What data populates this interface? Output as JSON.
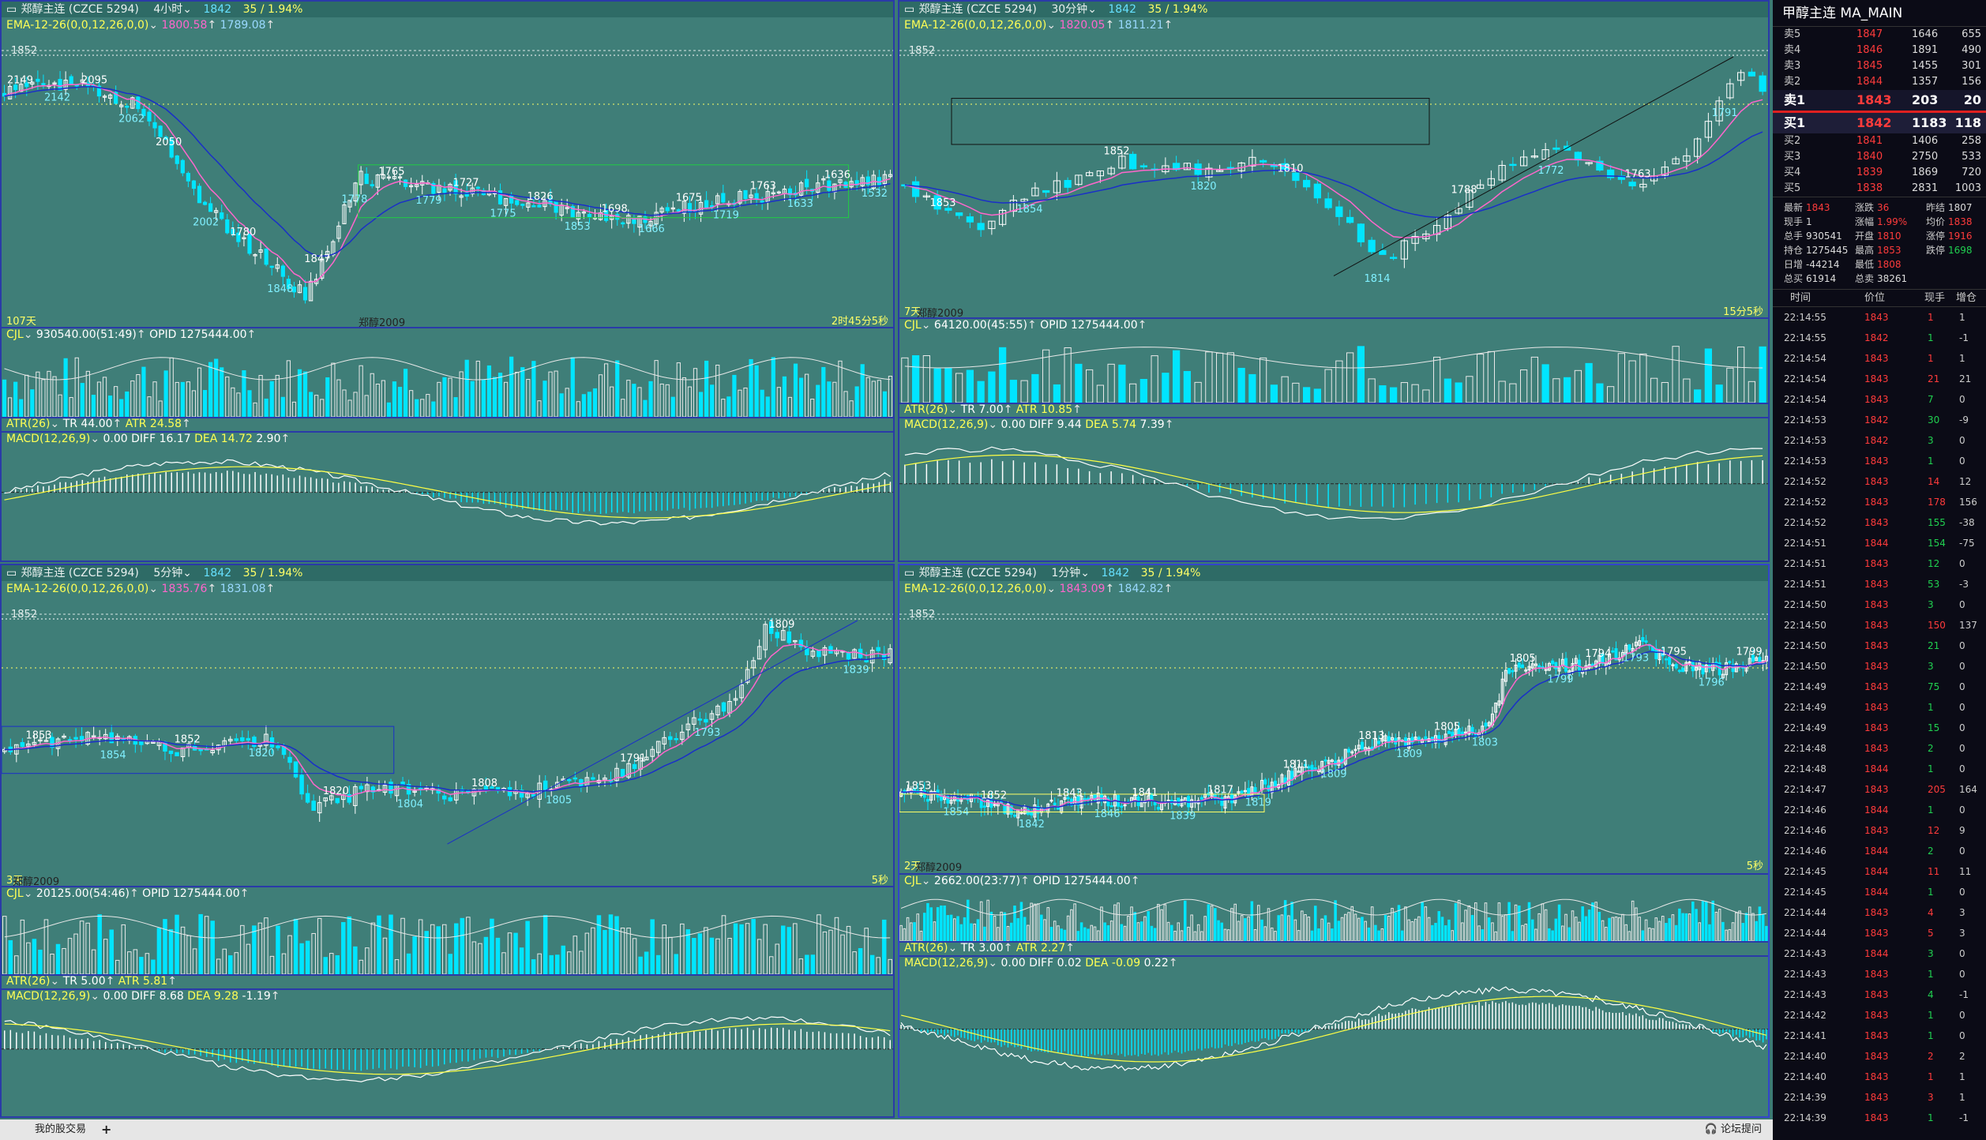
{
  "panels": [
    {
      "id": "p1",
      "header": {
        "name": "郑醇主连",
        "code": "(CZCE 5294)",
        "period": "4小时",
        "price": "1842",
        "change": "35 / 1.94%"
      },
      "ema": {
        "label": "EMA-12-26(0,0,12,26,0,0)",
        "v1": "1800.58",
        "v2": "1789.08"
      },
      "price_labels": [
        "2149",
        "2142",
        "2095",
        "2062",
        "2050",
        "2002",
        "1780",
        "1848",
        "1847",
        "1778",
        "1765",
        "1779",
        "1727",
        "1775",
        "1826",
        "1853",
        "1698",
        "1666",
        "1675",
        "1719",
        "1763",
        "1633",
        "1636",
        "1532"
      ],
      "axis_label": "1852",
      "left_corner": "107天",
      "center_tag": "郑醇2009",
      "right_corner": "2时45分5秒",
      "cjl": {
        "label": "CJL",
        "value": "930540.00(51:49)",
        "opid": "OPID 1275444.00"
      },
      "atr": {
        "label": "ATR(26)",
        "tr": "TR 44.00",
        "atr": "ATR 24.58"
      },
      "macd": {
        "label": "MACD(12,26,9)",
        "v0": "0.00",
        "diff": "DIFF 16.17",
        "dea": "DEA 14.72",
        "val": "2.90"
      }
    },
    {
      "id": "p2",
      "header": {
        "name": "郑醇主连",
        "code": "(CZCE 5294)",
        "period": "30分钟",
        "price": "1842",
        "change": "35 / 1.94%"
      },
      "ema": {
        "label": "EMA-12-26(0,0,12,26,0,0)",
        "v1": "1820.05",
        "v2": "1811.21"
      },
      "price_labels": [
        "1853",
        "1854",
        "1852",
        "1820",
        "1810",
        "1814",
        "1788",
        "1772",
        "1763",
        "1791"
      ],
      "axis_label": "1852",
      "left_corner": "7天",
      "center_tag": "郑醇2009",
      "right_corner": "15分5秒",
      "cjl": {
        "label": "CJL",
        "value": "64120.00(45:55)",
        "opid": "OPID 1275444.00"
      },
      "atr": {
        "label": "ATR(26)",
        "tr": "TR 7.00",
        "atr": "ATR 10.85"
      },
      "macd": {
        "label": "MACD(12,26,9)",
        "v0": "0.00",
        "diff": "DIFF 9.44",
        "dea": "DEA 5.74",
        "val": "7.39"
      }
    },
    {
      "id": "p3",
      "header": {
        "name": "郑醇主连",
        "code": "(CZCE 5294)",
        "period": "5分钟",
        "price": "1842",
        "change": "35 / 1.94%"
      },
      "ema": {
        "label": "EMA-12-26(0,0,12,26,0,0)",
        "v1": "1835.76",
        "v2": "1831.08"
      },
      "price_labels": [
        "1853",
        "1854",
        "1852",
        "1820",
        "1820",
        "1804",
        "1808",
        "1805",
        "1791",
        "1793",
        "1809",
        "1839"
      ],
      "axis_label": "1852",
      "left_corner": "3天",
      "center_tag": "郑醇2009",
      "right_corner": "5秒",
      "cjl": {
        "label": "CJL",
        "value": "20125.00(54:46)",
        "opid": "OPID 1275444.00"
      },
      "atr": {
        "label": "ATR(26)",
        "tr": "TR 5.00",
        "atr": "ATR 5.81"
      },
      "macd": {
        "label": "MACD(12,26,9)",
        "v0": "0.00",
        "diff": "DIFF 8.68",
        "dea": "DEA 9.28",
        "val": "-1.19"
      }
    },
    {
      "id": "p4",
      "header": {
        "name": "郑醇主连",
        "code": "(CZCE 5294)",
        "period": "1分钟",
        "price": "1842",
        "change": "35 / 1.94%"
      },
      "ema": {
        "label": "EMA-12-26(0,0,12,26,0,0)",
        "v1": "1843.09",
        "v2": "1842.82"
      },
      "price_labels": [
        "1853",
        "1854",
        "1852",
        "1842",
        "1843",
        "1846",
        "1841",
        "1839",
        "1817",
        "1819",
        "1811",
        "1809",
        "1813",
        "1809",
        "1805",
        "1803",
        "1805",
        "1799",
        "1794",
        "1793",
        "1795",
        "1796",
        "1799"
      ],
      "axis_label": "1852",
      "left_corner": "2天",
      "center_tag": "郑醇2009",
      "right_corner": "5秒",
      "cjl": {
        "label": "CJL",
        "value": "2662.00(23:77)",
        "opid": "OPID 1275444.00"
      },
      "atr": {
        "label": "ATR(26)",
        "tr": "TR 3.00",
        "atr": "ATR 2.27"
      },
      "macd": {
        "label": "MACD(12,26,9)",
        "v0": "0.00",
        "diff": "DIFF 0.02",
        "dea": "DEA -0.09",
        "val": "0.22"
      }
    }
  ],
  "quote": {
    "title": "甲醇主连  MA_MAIN",
    "asks": [
      {
        "label": "卖5",
        "price": "1847",
        "v1": "1646",
        "v2": "655"
      },
      {
        "label": "卖4",
        "price": "1846",
        "v1": "1891",
        "v2": "490"
      },
      {
        "label": "卖3",
        "price": "1845",
        "v1": "1455",
        "v2": "301"
      },
      {
        "label": "卖2",
        "price": "1844",
        "v1": "1357",
        "v2": "156"
      }
    ],
    "ask1": {
      "label": "卖1",
      "price": "1843",
      "v1": "203",
      "v2": "20"
    },
    "bid1": {
      "label": "买1",
      "price": "1842",
      "v1": "1183",
      "v2": "118"
    },
    "bids": [
      {
        "label": "买2",
        "price": "1841",
        "v1": "1406",
        "v2": "258"
      },
      {
        "label": "买3",
        "price": "1840",
        "v1": "2750",
        "v2": "533"
      },
      {
        "label": "买4",
        "price": "1839",
        "v1": "1869",
        "v2": "720"
      },
      {
        "label": "买5",
        "price": "1838",
        "v1": "2831",
        "v2": "1003"
      }
    ],
    "stats": [
      [
        {
          "k": "最新",
          "v": "1843",
          "c": "r"
        },
        {
          "k": "涨跌",
          "v": "36",
          "c": "r"
        },
        {
          "k": "昨结",
          "v": "1807",
          "c": "w"
        }
      ],
      [
        {
          "k": "现手",
          "v": "1",
          "c": "w"
        },
        {
          "k": "涨幅",
          "v": "1.99%",
          "c": "r"
        },
        {
          "k": "均价",
          "v": "1838",
          "c": "r"
        }
      ],
      [
        {
          "k": "总手",
          "v": "930541",
          "c": "w"
        },
        {
          "k": "开盘",
          "v": "1810",
          "c": "r"
        },
        {
          "k": "涨停",
          "v": "1916",
          "c": "r"
        }
      ],
      [
        {
          "k": "持仓",
          "v": "1275445",
          "c": "w"
        },
        {
          "k": "最高",
          "v": "1853",
          "c": "r"
        },
        {
          "k": "跌停",
          "v": "1698",
          "c": "g"
        }
      ],
      [
        {
          "k": "日增",
          "v": "-44214",
          "c": "w"
        },
        {
          "k": "最低",
          "v": "1808",
          "c": "r"
        },
        {
          "k": "",
          "v": "",
          "c": "w"
        }
      ],
      [
        {
          "k": "总买",
          "v": "61914",
          "c": "w"
        },
        {
          "k": "总卖",
          "v": "38261",
          "c": "w"
        },
        {
          "k": "",
          "v": "",
          "c": "w"
        }
      ]
    ],
    "tick_headers": [
      "时间",
      "价位",
      "现手",
      "增仓"
    ],
    "ticks": [
      {
        "t": "22:14:55",
        "p": "1843",
        "v": "1",
        "c": "1"
      },
      {
        "t": "22:14:55",
        "p": "1842",
        "v": "1",
        "c": "-1"
      },
      {
        "t": "22:14:54",
        "p": "1843",
        "v": "1",
        "c": "1"
      },
      {
        "t": "22:14:54",
        "p": "1843",
        "v": "21",
        "c": "21"
      },
      {
        "t": "22:14:54",
        "p": "1843",
        "v": "7",
        "c": "0"
      },
      {
        "t": "22:14:53",
        "p": "1842",
        "v": "30",
        "c": "-9"
      },
      {
        "t": "22:14:53",
        "p": "1842",
        "v": "3",
        "c": "0"
      },
      {
        "t": "22:14:53",
        "p": "1843",
        "v": "1",
        "c": "0"
      },
      {
        "t": "22:14:52",
        "p": "1843",
        "v": "14",
        "c": "12"
      },
      {
        "t": "22:14:52",
        "p": "1843",
        "v": "178",
        "c": "156"
      },
      {
        "t": "22:14:52",
        "p": "1843",
        "v": "155",
        "c": "-38"
      },
      {
        "t": "22:14:51",
        "p": "1844",
        "v": "154",
        "c": "-75"
      },
      {
        "t": "22:14:51",
        "p": "1843",
        "v": "12",
        "c": "0"
      },
      {
        "t": "22:14:51",
        "p": "1843",
        "v": "53",
        "c": "-3"
      },
      {
        "t": "22:14:50",
        "p": "1843",
        "v": "3",
        "c": "0"
      },
      {
        "t": "22:14:50",
        "p": "1843",
        "v": "150",
        "c": "137"
      },
      {
        "t": "22:14:50",
        "p": "1843",
        "v": "21",
        "c": "0"
      },
      {
        "t": "22:14:50",
        "p": "1843",
        "v": "3",
        "c": "0"
      },
      {
        "t": "22:14:49",
        "p": "1843",
        "v": "75",
        "c": "0"
      },
      {
        "t": "22:14:49",
        "p": "1843",
        "v": "1",
        "c": "0"
      },
      {
        "t": "22:14:49",
        "p": "1843",
        "v": "15",
        "c": "0"
      },
      {
        "t": "22:14:48",
        "p": "1843",
        "v": "2",
        "c": "0"
      },
      {
        "t": "22:14:48",
        "p": "1844",
        "v": "1",
        "c": "0"
      },
      {
        "t": "22:14:47",
        "p": "1843",
        "v": "205",
        "c": "164"
      },
      {
        "t": "22:14:46",
        "p": "1844",
        "v": "1",
        "c": "0"
      },
      {
        "t": "22:14:46",
        "p": "1843",
        "v": "12",
        "c": "9"
      },
      {
        "t": "22:14:46",
        "p": "1844",
        "v": "2",
        "c": "0"
      },
      {
        "t": "22:14:45",
        "p": "1844",
        "v": "11",
        "c": "11"
      },
      {
        "t": "22:14:45",
        "p": "1844",
        "v": "1",
        "c": "0"
      },
      {
        "t": "22:14:44",
        "p": "1843",
        "v": "4",
        "c": "3"
      },
      {
        "t": "22:14:44",
        "p": "1843",
        "v": "5",
        "c": "3"
      },
      {
        "t": "22:14:43",
        "p": "1844",
        "v": "3",
        "c": "0"
      },
      {
        "t": "22:14:43",
        "p": "1843",
        "v": "1",
        "c": "0"
      },
      {
        "t": "22:14:43",
        "p": "1843",
        "v": "4",
        "c": "-1"
      },
      {
        "t": "22:14:42",
        "p": "1843",
        "v": "1",
        "c": "0"
      },
      {
        "t": "22:14:41",
        "p": "1843",
        "v": "1",
        "c": "0"
      },
      {
        "t": "22:14:40",
        "p": "1843",
        "v": "2",
        "c": "2"
      },
      {
        "t": "22:14:40",
        "p": "1843",
        "v": "1",
        "c": "1"
      },
      {
        "t": "22:14:39",
        "p": "1843",
        "v": "3",
        "c": "1"
      },
      {
        "t": "22:14:39",
        "p": "1843",
        "v": "1",
        "c": "-1"
      }
    ]
  },
  "statusbar": {
    "tab": "我的股交易",
    "plus": "+",
    "forum": "论坛提问"
  },
  "colors": {
    "bg": "#3f7e78",
    "border": "#2a3aa8",
    "up": "#ffffff",
    "down": "#00e5ff",
    "ema1": "#ff66cc",
    "ema2": "#1a2fc8",
    "label": "#ffff66"
  }
}
